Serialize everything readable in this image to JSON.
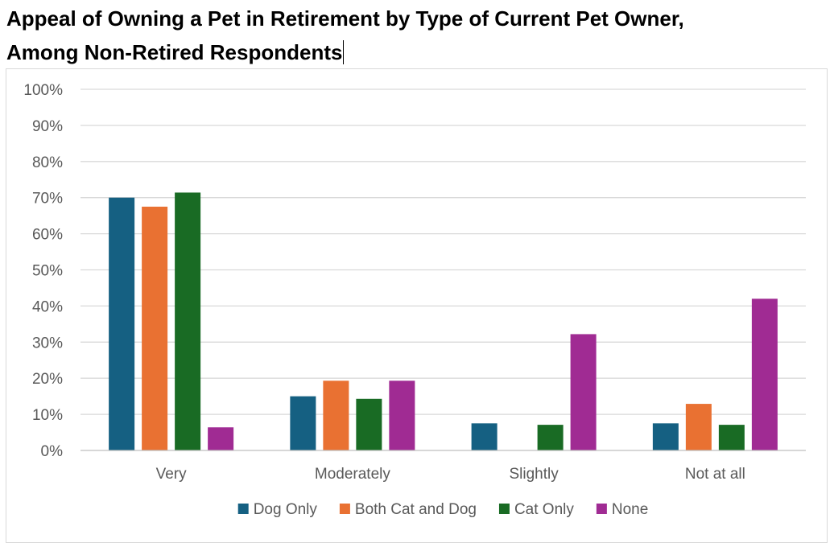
{
  "chart_data": {
    "type": "bar",
    "title_lines": [
      "Appeal of Owning a Pet in Retirement by Type of Current Pet Owner,",
      "Among Non-Retired Respondents"
    ],
    "categories": [
      "Very",
      "Moderately",
      "Slightly",
      "Not at all"
    ],
    "series": [
      {
        "name": "Dog  Only",
        "color": "#156082",
        "values": [
          70,
          15,
          7.5,
          7.5
        ]
      },
      {
        "name": "Both  Cat  and  Dog",
        "color": "#E97132",
        "values": [
          67.5,
          19.3,
          0,
          12.9
        ]
      },
      {
        "name": "Cat   Only",
        "color": "#196B24",
        "values": [
          71.4,
          14.3,
          7.1,
          7.1
        ]
      },
      {
        "name": "None",
        "color": "#A02B93",
        "values": [
          6.4,
          19.3,
          32.2,
          42
        ]
      }
    ],
    "ylim": [
      0,
      100
    ],
    "yticks": [
      "0%",
      "10%",
      "20%",
      "30%",
      "40%",
      "50%",
      "60%",
      "70%",
      "80%",
      "90%",
      "100%"
    ],
    "xlabel": "",
    "ylabel": "",
    "grid": true,
    "legend_position": "bottom"
  }
}
